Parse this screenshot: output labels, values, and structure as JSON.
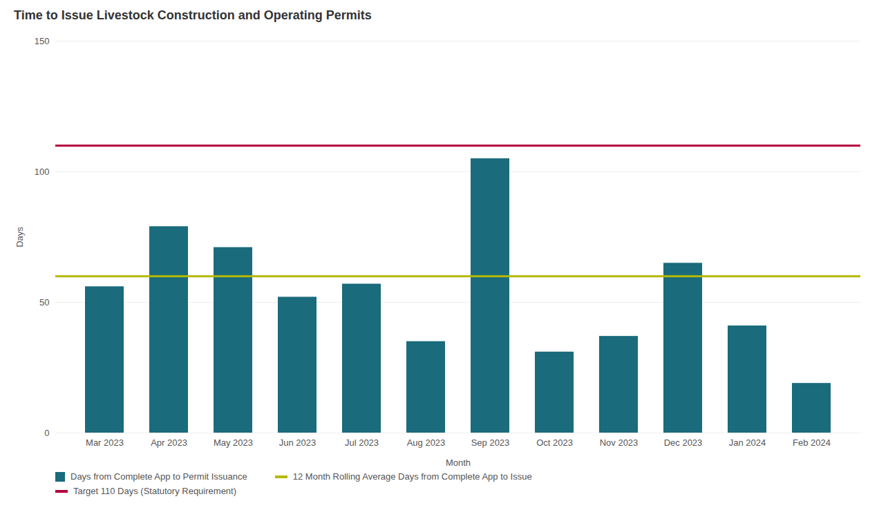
{
  "chart_data": {
    "type": "bar",
    "title": "Time to Issue Livestock Construction and Operating Permits",
    "xlabel": "Month",
    "ylabel": "Days",
    "categories": [
      "Mar 2023",
      "Apr 2023",
      "May 2023",
      "Jun 2023",
      "Jul 2023",
      "Aug 2023",
      "Sep 2023",
      "Oct 2023",
      "Nov 2023",
      "Dec 2023",
      "Jan 2024",
      "Feb 2024"
    ],
    "series": [
      {
        "name": "Days from Complete App to Permit Issuance",
        "color": "#1a6b7c",
        "values": [
          56,
          79,
          71,
          52,
          57,
          35,
          105,
          31,
          37,
          65,
          41,
          19
        ]
      }
    ],
    "reference_lines": [
      {
        "name": "12 Month Rolling Average Days from Complete App to Issue",
        "value": 60,
        "color": "#b5b800"
      },
      {
        "name": "Target 110 Days (Statutory Requirement)",
        "value": 110,
        "color": "#b5003a"
      }
    ],
    "ylim": [
      0,
      150
    ],
    "yticks": [
      0,
      50,
      100,
      150
    ],
    "grid": true,
    "legend": "bottom"
  }
}
